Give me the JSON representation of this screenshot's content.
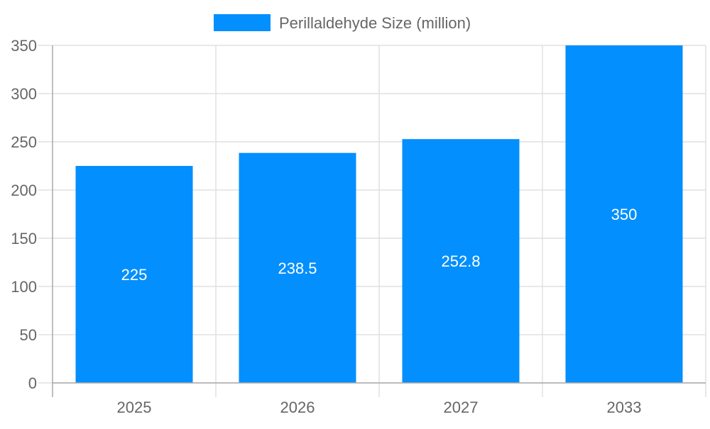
{
  "chart_data": {
    "type": "bar",
    "categories": [
      "2025",
      "2026",
      "2027",
      "2033"
    ],
    "series": [
      {
        "name": "Perillaldehyde Size (million)",
        "values": [
          225,
          238.5,
          252.8,
          350
        ],
        "color": "#038ffe"
      }
    ],
    "data_labels": [
      "225",
      "238.5",
      "252.8",
      "350"
    ],
    "ylim": [
      0,
      350
    ],
    "yticks": [
      0,
      50,
      100,
      150,
      200,
      250,
      300,
      350
    ],
    "grid": true,
    "legend": "top-center",
    "title": "",
    "xlabel": "",
    "ylabel": ""
  }
}
